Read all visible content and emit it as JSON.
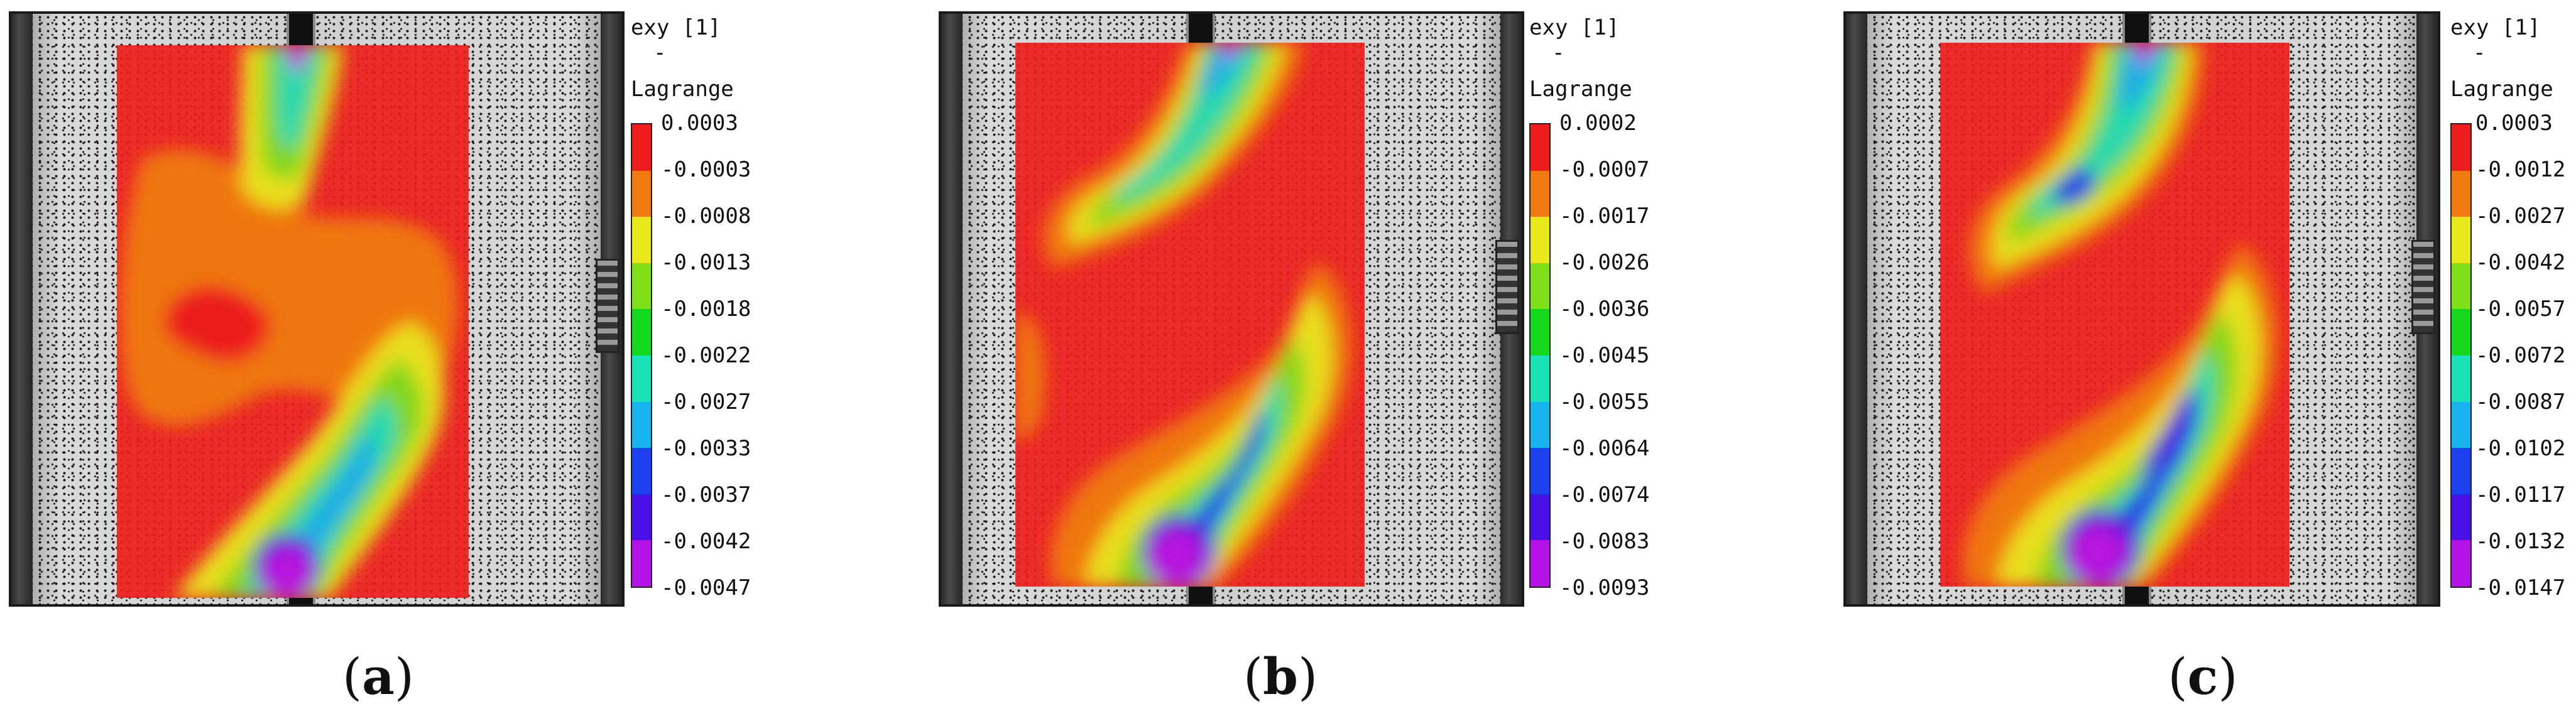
{
  "figure": {
    "panels": [
      {
        "legend_line1": "exy [1]",
        "legend_line2": "-",
        "legend_line3": "Lagrange",
        "ticks": [
          "0.0003",
          "-0.0003",
          "-0.0008",
          "-0.0013",
          "-0.0018",
          "-0.0022",
          "-0.0027",
          "-0.0033",
          "-0.0037",
          "-0.0042",
          "-0.0047"
        ],
        "caption_open": "(",
        "caption_letter": "a",
        "caption_close": ")"
      },
      {
        "legend_line1": "exy [1]",
        "legend_line2": "-",
        "legend_line3": "Lagrange",
        "ticks": [
          "0.0002",
          "-0.0007",
          "-0.0017",
          "-0.0026",
          "-0.0036",
          "-0.0045",
          "-0.0055",
          "-0.0064",
          "-0.0074",
          "-0.0083",
          "-0.0093"
        ],
        "caption_open": "(",
        "caption_letter": "b",
        "caption_close": ")"
      },
      {
        "legend_line1": "exy [1]",
        "legend_line2": "-",
        "legend_line3": "Lagrange",
        "ticks": [
          "0.0003",
          "-0.0012",
          "-0.0027",
          "-0.0042",
          "-0.0057",
          "-0.0072",
          "-0.0087",
          "-0.0102",
          "-0.0117",
          "-0.0132",
          "-0.0147"
        ],
        "caption_open": "(",
        "caption_letter": "c",
        "caption_close": ")"
      }
    ],
    "colorbar_colors": [
      "#ee1c1c",
      "#f07a10",
      "#e8e81a",
      "#7fe01a",
      "#13d81c",
      "#19e2b6",
      "#18b4f0",
      "#1c3ff0",
      "#4a10e8",
      "#b512e8"
    ]
  }
}
